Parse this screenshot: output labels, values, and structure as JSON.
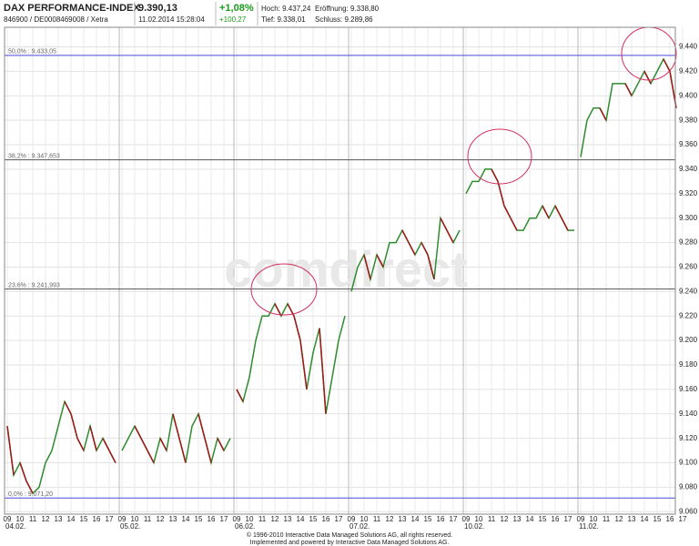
{
  "header": {
    "title": "DAX PERFORMANCE-INDEX",
    "price": "9.390,13",
    "ids": "846900 / DE0008469008 / Xetra",
    "timestamp": "11.02.2014 15:28:04",
    "change_pct": "+1,08%",
    "change_abs": "+100,27",
    "high": "Hoch: 9.437,24",
    "open": "Eröffnung: 9.338,80",
    "low": "Tief: 9.338,01",
    "close": "Schluss: 9.289,86"
  },
  "chart_data": {
    "type": "line",
    "color": "#2e8b2e",
    "watermark": "comdirect",
    "ylim": [
      9.058,
      9.456
    ],
    "yticks": [
      {
        "value": 9.06,
        "label": "9.060"
      },
      {
        "value": 9.08,
        "label": "9.080"
      },
      {
        "value": 9.1,
        "label": "9.100"
      },
      {
        "value": 9.12,
        "label": "9.120"
      },
      {
        "value": 9.14,
        "label": "9.140"
      },
      {
        "value": 9.16,
        "label": "9.160"
      },
      {
        "value": 9.18,
        "label": "9.180"
      },
      {
        "value": 9.2,
        "label": "9.200"
      },
      {
        "value": 9.22,
        "label": "9.220"
      },
      {
        "value": 9.24,
        "label": "9.240"
      },
      {
        "value": 9.26,
        "label": "9.260"
      },
      {
        "value": 9.28,
        "label": "9.280"
      },
      {
        "value": 9.3,
        "label": "9.300"
      },
      {
        "value": 9.32,
        "label": "9.320"
      },
      {
        "value": 9.34,
        "label": "9.340"
      },
      {
        "value": 9.36,
        "label": "9.360"
      },
      {
        "value": 9.38,
        "label": "9.380"
      },
      {
        "value": 9.4,
        "label": "9.400"
      },
      {
        "value": 9.42,
        "label": "9.420"
      },
      {
        "value": 9.44,
        "label": "9.440"
      }
    ],
    "hours": [
      "09",
      "10",
      "11",
      "12",
      "13",
      "14",
      "15",
      "16",
      "17"
    ],
    "levels": [
      {
        "value": 9.43305,
        "label": "50,0% : 9.433,05",
        "color": "#4a4adf"
      },
      {
        "value": 9.347653,
        "label": "38,2% : 9.347,653",
        "color": "#555555"
      },
      {
        "value": 9.241993,
        "label": "23,6% : 9.241,993",
        "color": "#555555"
      },
      {
        "value": 9.0712,
        "label": "0,0% : 9.071,20",
        "color": "#4a4adf"
      }
    ],
    "days": [
      {
        "label": "04.02.",
        "values": [
          9.13,
          9.09,
          9.1,
          9.085,
          9.075,
          9.08,
          9.1,
          9.11,
          9.13,
          9.15,
          9.14,
          9.12,
          9.11,
          9.13,
          9.11,
          9.12,
          9.11,
          9.1
        ]
      },
      {
        "label": "05.02.",
        "values": [
          9.11,
          9.12,
          9.13,
          9.12,
          9.11,
          9.1,
          9.12,
          9.11,
          9.14,
          9.12,
          9.1,
          9.13,
          9.14,
          9.12,
          9.1,
          9.12,
          9.11,
          9.12
        ]
      },
      {
        "label": "06.02.",
        "values": [
          9.16,
          9.15,
          9.17,
          9.2,
          9.22,
          9.22,
          9.23,
          9.22,
          9.23,
          9.22,
          9.2,
          9.16,
          9.19,
          9.21,
          9.14,
          9.17,
          9.2,
          9.22
        ]
      },
      {
        "label": "07.02.",
        "values": [
          9.24,
          9.26,
          9.27,
          9.25,
          9.27,
          9.26,
          9.28,
          9.28,
          9.29,
          9.28,
          9.27,
          9.28,
          9.27,
          9.25,
          9.3,
          9.29,
          9.28,
          9.29
        ]
      },
      {
        "label": "10.02.",
        "values": [
          9.32,
          9.33,
          9.33,
          9.34,
          9.34,
          9.33,
          9.31,
          9.3,
          9.29,
          9.29,
          9.3,
          9.3,
          9.31,
          9.3,
          9.31,
          9.3,
          9.29,
          9.29
        ]
      },
      {
        "label": "11.02.",
        "values": [
          9.35,
          9.38,
          9.39,
          9.39,
          9.38,
          9.41,
          9.41,
          9.41,
          9.4,
          9.41,
          9.42,
          9.41,
          9.42,
          9.43,
          9.42,
          9.39
        ]
      }
    ]
  },
  "footer": {
    "line1": "© 1996-2010 Interactive Data Managed Solutions AG, all rights reserved.",
    "line2": "Implemented and powered by Interactive Data Managed Solutions AG."
  }
}
